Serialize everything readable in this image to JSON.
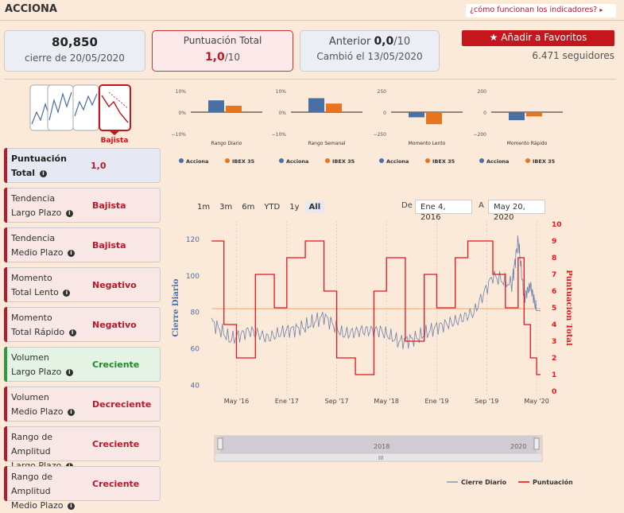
{
  "header": {
    "title": "ACCIONA",
    "how_link": "¿cómo funcionan los indicadores?"
  },
  "cards": {
    "price": {
      "value": "80,850",
      "caption": "cierre de 20/05/2020"
    },
    "score": {
      "label": "Puntuación Total",
      "value": "1,0",
      "max": "/10"
    },
    "previous": {
      "label": "Anterior",
      "value": "0,0",
      "max": "/10",
      "caption": "Cambió el 13/05/2020"
    }
  },
  "favorites": {
    "label": "Añadir a Favoritos",
    "followers": "6.471 seguidores"
  },
  "trend_badge": "Bajista",
  "indicators": [
    {
      "name_a": "Puntuación",
      "name_b": "Total",
      "value": "1,0",
      "style": "total"
    },
    {
      "name_a": "Tendencia",
      "name_b": "Largo Plazo",
      "value": "Bajista",
      "style": "red"
    },
    {
      "name_a": "Tendencia",
      "name_b": "Medio Plazo",
      "value": "Bajista",
      "style": "red"
    },
    {
      "name_a": "Momento",
      "name_b": "Total Lento",
      "value": "Negativo",
      "style": "red"
    },
    {
      "name_a": "Momento",
      "name_b": "Total Rápido",
      "value": "Negativo",
      "style": "red"
    },
    {
      "name_a": "Volumen",
      "name_b": "Largo Plazo",
      "value": "Creciente",
      "style": "green"
    },
    {
      "name_a": "Volumen",
      "name_b": "Medio Plazo",
      "value": "Decreciente",
      "style": "red"
    },
    {
      "name_a": "Rango de Amplitud",
      "name_b": "Largo Plazo",
      "value": "Creciente",
      "style": "red"
    },
    {
      "name_a": "Rango de Amplitud",
      "name_b": "Medio Plazo",
      "value": "Creciente",
      "style": "red"
    }
  ],
  "range_selector": {
    "buttons": [
      "1m",
      "3m",
      "6m",
      "YTD",
      "1y",
      "All"
    ],
    "selected": "All",
    "from_label": "De",
    "from_value": "Ene 4, 2016",
    "to_label": "A",
    "to_value": "May 20, 2020"
  },
  "colors": {
    "acciona": "#4a6fa5",
    "ibex": "#e8741d",
    "score_line": "#e8141c",
    "price_line": "#6b82a8"
  },
  "chart_data": [
    {
      "type": "bar",
      "subtitle": "Rango Diario",
      "categories": [
        "Rango Diario"
      ],
      "ylim": [
        -10,
        10
      ],
      "yticks": [
        "10%",
        "0%",
        "−10%"
      ],
      "series": [
        {
          "name": "Acciona",
          "values": [
            5.5
          ]
        },
        {
          "name": "IBEX 35",
          "values": [
            3
          ]
        }
      ]
    },
    {
      "type": "bar",
      "subtitle": "Rango Semanal",
      "categories": [
        "Rango Semanal"
      ],
      "ylim": [
        -10,
        10
      ],
      "yticks": [
        "10%",
        "0%",
        "−10%"
      ],
      "series": [
        {
          "name": "Acciona",
          "values": [
            6.5
          ]
        },
        {
          "name": "IBEX 35",
          "values": [
            4
          ]
        }
      ]
    },
    {
      "type": "bar",
      "subtitle": "Momento Lento",
      "categories": [
        "Momento Lento"
      ],
      "ylim": [
        -250,
        250
      ],
      "yticks": [
        "250",
        "0",
        "−250"
      ],
      "series": [
        {
          "name": "Acciona",
          "values": [
            -60
          ]
        },
        {
          "name": "IBEX 35",
          "values": [
            -140
          ]
        }
      ]
    },
    {
      "type": "bar",
      "subtitle": "Momento Rápido",
      "categories": [
        "Momento Rápido"
      ],
      "ylim": [
        -200,
        200
      ],
      "yticks": [
        "200",
        "0",
        "−200"
      ],
      "series": [
        {
          "name": "Acciona",
          "values": [
            -75
          ]
        },
        {
          "name": "IBEX 35",
          "values": [
            -40
          ]
        }
      ]
    },
    {
      "type": "line",
      "x_ticks": [
        "May '16",
        "Ene '17",
        "Sep '17",
        "May '18",
        "Ene '19",
        "Sep '19",
        "May '20"
      ],
      "x_start": "2016-01-04",
      "x_end": "2020-05-20",
      "ylabel": "Cierre Diario",
      "ylim": [
        35,
        130
      ],
      "yticks": [
        40,
        60,
        80,
        100,
        120
      ],
      "y2label": "Puntuación Total",
      "y2lim": [
        0,
        10
      ],
      "y2ticks": [
        0,
        1,
        2,
        3,
        4,
        5,
        6,
        7,
        8,
        9,
        10
      ],
      "reference_line": 82,
      "series": [
        {
          "name": "Cierre Diario",
          "x": [
            "2016-01",
            "2016-04",
            "2016-07",
            "2016-10",
            "2017-01",
            "2017-04",
            "2017-07",
            "2017-10",
            "2018-01",
            "2018-04",
            "2018-07",
            "2018-10",
            "2019-01",
            "2019-04",
            "2019-07",
            "2019-10",
            "2020-01",
            "2020-02",
            "2020-03",
            "2020-04",
            "2020-05"
          ],
          "values": [
            75,
            65,
            70,
            66,
            70,
            72,
            78,
            68,
            70,
            70,
            64,
            66,
            72,
            75,
            80,
            100,
            95,
            120,
            88,
            95,
            80.85
          ]
        },
        {
          "name": "Puntuación",
          "x": [
            "2016-01",
            "2016-03",
            "2016-05",
            "2016-08",
            "2016-11",
            "2017-01",
            "2017-04",
            "2017-07",
            "2017-09",
            "2017-12",
            "2018-03",
            "2018-05",
            "2018-08",
            "2018-11",
            "2019-01",
            "2019-04",
            "2019-06",
            "2019-08",
            "2019-10",
            "2019-12",
            "2020-02",
            "2020-03",
            "2020-04",
            "2020-05"
          ],
          "values": [
            9,
            4,
            2,
            7,
            5,
            8,
            9,
            6,
            2,
            1,
            6,
            8,
            3,
            7,
            5,
            8,
            9,
            9,
            7,
            5,
            8,
            4,
            2,
            1
          ]
        }
      ]
    }
  ],
  "legend": {
    "price": "Cierre Diario",
    "score": "Puntuación"
  },
  "navigator": {
    "labels": [
      "2018",
      "2020"
    ]
  }
}
